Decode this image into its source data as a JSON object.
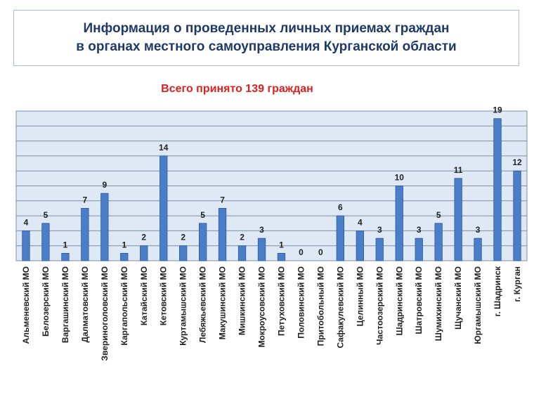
{
  "header": {
    "title_line1": "Информация о проведенных личных приемах граждан",
    "title_line2": "в органах местного самоуправления Курганской области"
  },
  "chart_data": {
    "type": "bar",
    "subtitle": "Всего принято 139 граждан",
    "categories": [
      "Альменевский МО",
      "Белозерский МО",
      "Варгашинский МО",
      "Далматовский МО",
      "Звериноголовский МО",
      "Каргапольский МО",
      "Катайский МО",
      "Кетовский МО",
      "Куртамышский МО",
      "Лебяжьевский МО",
      "Макушинский МО",
      "Мишкинский МО",
      "Мокроусовский МО",
      "Петуховский МО",
      "Половинский МО",
      "Притобольный МО",
      "Сафакулевский МО",
      "Целинный МО",
      "Частоозерский МО",
      "Шадринский МО",
      "Шатровский МО",
      "Шумихинский МО",
      "Щучанский МО",
      "Юргамышский МО",
      "г. Шадринск",
      "г. Курган"
    ],
    "values": [
      4,
      5,
      1,
      7,
      9,
      1,
      2,
      14,
      2,
      5,
      7,
      2,
      3,
      1,
      0,
      0,
      6,
      4,
      3,
      10,
      3,
      5,
      11,
      3,
      19,
      12
    ],
    "data_labels": [
      "4",
      "5",
      "1",
      "7",
      "9",
      "1",
      "2",
      "14",
      "2",
      "5",
      "7",
      "2",
      "3",
      "1",
      "0",
      "0",
      "6",
      "4",
      "3",
      "10",
      "3",
      "5",
      "11",
      "3",
      "19",
      "12"
    ],
    "ylim": [
      0,
      20
    ],
    "grid": true,
    "legend": "none",
    "colors": {
      "bar_fill": "#4a7ec9",
      "bar_stroke": "#2c5a9c",
      "plot_bg": "#dfe9f5",
      "grid": "#7f8fa6",
      "subtitle": "#e02020",
      "title": "#1f3a68"
    }
  }
}
